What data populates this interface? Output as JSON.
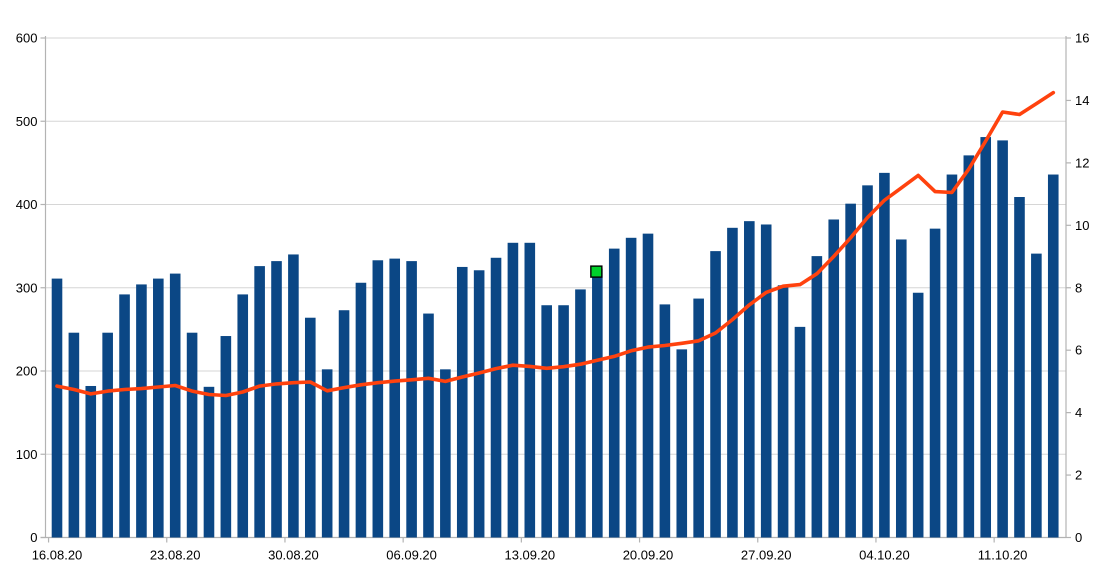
{
  "chart_data": {
    "type": "bar",
    "subtype": "combo-bar-line-dual-axis",
    "title": "",
    "legend": "none",
    "grid": "horizontal",
    "colors": {
      "bar": "#0b4785",
      "line": "#ff420e",
      "selection_handle": "#00d02a",
      "selection_handle_border": "#000000",
      "gridline": "#d6d6d6",
      "axis": "#b3b3b3",
      "text": "#000000"
    },
    "left_axis": {
      "min": 0,
      "max": 600,
      "step": 100,
      "tick_labels": [
        "0",
        "100",
        "200",
        "300",
        "400",
        "500",
        "600"
      ]
    },
    "right_axis": {
      "min": 0,
      "max": 16,
      "step": 2,
      "tick_labels": [
        "0",
        "2",
        "4",
        "6",
        "8",
        "10",
        "12",
        "14",
        "16"
      ]
    },
    "x_axis": {
      "week_labels": [
        "16.08.20",
        "23.08.20",
        "30.08.20",
        "06.09.20",
        "13.09.20",
        "20.09.20",
        "27.09.20",
        "04.10.20",
        "11.10.20"
      ],
      "label_every_n": 7
    },
    "categories": [
      "16.08.20",
      "17.08.20",
      "18.08.20",
      "19.08.20",
      "20.08.20",
      "21.08.20",
      "22.08.20",
      "23.08.20",
      "24.08.20",
      "25.08.20",
      "26.08.20",
      "27.08.20",
      "28.08.20",
      "29.08.20",
      "30.08.20",
      "31.08.20",
      "01.09.20",
      "02.09.20",
      "03.09.20",
      "04.09.20",
      "05.09.20",
      "06.09.20",
      "07.09.20",
      "08.09.20",
      "09.09.20",
      "10.09.20",
      "11.09.20",
      "12.09.20",
      "13.09.20",
      "14.09.20",
      "15.09.20",
      "16.09.20",
      "17.09.20",
      "18.09.20",
      "19.09.20",
      "20.09.20",
      "21.09.20",
      "22.09.20",
      "23.09.20",
      "24.09.20",
      "25.09.20",
      "26.09.20",
      "27.09.20",
      "28.09.20",
      "29.09.20",
      "30.09.20",
      "01.10.20",
      "02.10.20",
      "03.10.20",
      "04.10.20",
      "05.10.20",
      "06.10.20",
      "07.10.20",
      "08.10.20",
      "09.10.20",
      "10.10.20",
      "11.10.20",
      "12.10.20",
      "13.10.20",
      "14.10.20"
    ],
    "series": [
      {
        "name": "daily-value-bars",
        "type": "bar",
        "axis": "left",
        "values": [
          311,
          246,
          182,
          246,
          292,
          304,
          311,
          317,
          246,
          181,
          242,
          292,
          326,
          332,
          340,
          264,
          202,
          273,
          306,
          333,
          335,
          332,
          269,
          202,
          325,
          321,
          336,
          354,
          354,
          279,
          279,
          298,
          323,
          347,
          360,
          365,
          280,
          226,
          287,
          344,
          372,
          380,
          376,
          303,
          253,
          338,
          382,
          401,
          423,
          438,
          358,
          294,
          371,
          436,
          459,
          481,
          477,
          409,
          341,
          436
        ]
      },
      {
        "name": "trend-line",
        "type": "line",
        "axis": "right",
        "values": [
          4.85,
          4.74,
          4.6,
          4.69,
          4.74,
          4.77,
          4.82,
          4.87,
          4.69,
          4.58,
          4.55,
          4.66,
          4.85,
          4.92,
          4.96,
          4.98,
          4.7,
          4.8,
          4.89,
          4.96,
          5.01,
          5.05,
          5.1,
          5.0,
          5.14,
          5.27,
          5.41,
          5.52,
          5.48,
          5.42,
          5.47,
          5.55,
          5.68,
          5.8,
          5.98,
          6.1,
          6.15,
          6.22,
          6.3,
          6.55,
          6.98,
          7.45,
          7.85,
          8.05,
          8.1,
          8.45,
          9.0,
          9.6,
          10.25,
          10.8,
          11.2,
          11.6,
          11.08,
          11.05,
          11.8,
          12.7,
          13.63,
          13.55,
          13.9,
          14.25
        ]
      }
    ],
    "selection": {
      "series": "daily-value-bars",
      "category": "17.09.20",
      "index": 32
    }
  }
}
